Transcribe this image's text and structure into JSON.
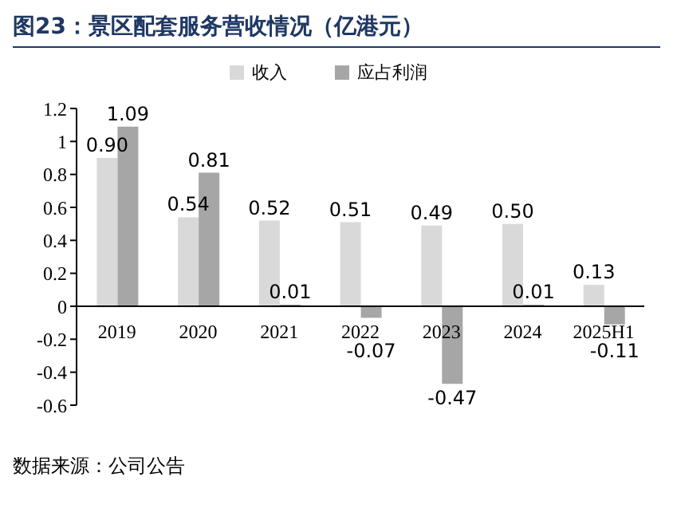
{
  "chart_data": {
    "type": "bar",
    "title": "图23：景区配套服务营收情况（亿港元）",
    "categories": [
      "2019",
      "2020",
      "2021",
      "2022",
      "2023",
      "2024",
      "2025H1"
    ],
    "series": [
      {
        "name": "收入",
        "color": "#d9d9d9",
        "values": [
          0.9,
          0.54,
          0.52,
          0.51,
          0.49,
          0.5,
          0.13
        ],
        "value_labels": [
          "0.90",
          "0.54",
          "0.52",
          "0.51",
          "0.49",
          "0.50",
          "0.13"
        ]
      },
      {
        "name": "应占利润",
        "color": "#a6a6a6",
        "values": [
          1.09,
          0.81,
          0.01,
          -0.07,
          -0.47,
          0.01,
          -0.11
        ],
        "value_labels": [
          "1.09",
          "0.81",
          "0.01",
          "-0.07",
          "-0.47",
          "0.01",
          "-0.11"
        ]
      }
    ],
    "ylim": [
      -0.6,
      1.2
    ],
    "yticks": [
      -0.6,
      -0.4,
      -0.2,
      0,
      0.2,
      0.4,
      0.6,
      0.8,
      1,
      1.2
    ],
    "grid": false,
    "legend": "top",
    "annotations": [
      "数据来源：公司公告"
    ]
  }
}
